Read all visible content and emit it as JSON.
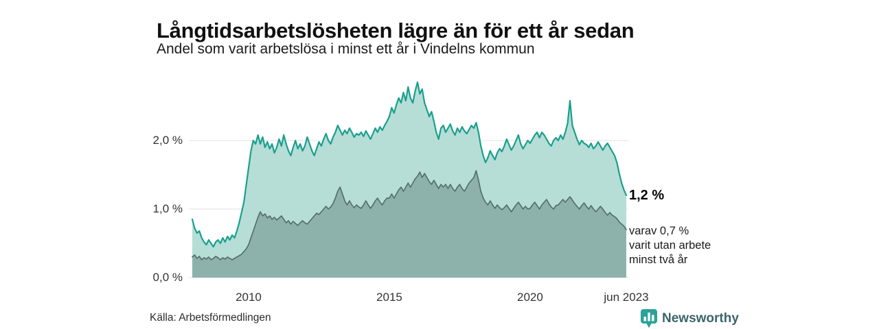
{
  "header": {
    "title": "Långtidsarbetslösheten lägre än för ett år sedan",
    "subtitle": "Andel som varit arbetslösa i minst ett år i Vindelns kommun"
  },
  "annotation": {
    "value_label": "1,2 %",
    "note_lines": [
      "varav 0,7 %",
      "varit utan arbete",
      "minst två år"
    ]
  },
  "footer": {
    "source": "Källa: Arbetsförmedlingen",
    "brand": "Newsworthy"
  },
  "colors": {
    "series1_fill": "#b7ddd7",
    "series1_line": "#18a08c",
    "series2_fill": "#8db2ac",
    "series2_line": "#546f6a",
    "grid": "#e1e1e1",
    "brand_teal": "#2aa39a",
    "brand_text": "#3a656b"
  },
  "chart_data": {
    "type": "area",
    "title": "Långtidsarbetslösheten lägre än för ett år sedan",
    "subtitle": "Andel som varit arbetslösa i minst ett år i Vindelns kommun",
    "unit": "%",
    "frequency": "monthly",
    "x_start": "2008-01",
    "x_end": "2023-06",
    "ylim": [
      0,
      2.97
    ],
    "grid": "horizontal",
    "legend": "none",
    "y_ticks": [
      {
        "label": "2,0 %",
        "value": 2.0
      },
      {
        "label": "1,0 %",
        "value": 1.0
      },
      {
        "label": "0,0 %",
        "value": 0.0
      }
    ],
    "x_ticks": [
      {
        "label": "2010",
        "month_index": 24
      },
      {
        "label": "2015",
        "month_index": 84
      },
      {
        "label": "2020",
        "month_index": 144
      },
      {
        "label": "jun 2023",
        "month_index": 185
      }
    ],
    "end_values": {
      "minst_ett_ar": 1.2,
      "minst_tva_ar": 0.7
    },
    "series": [
      {
        "name": "Arbetslösa minst ett år",
        "values": [
          0.85,
          0.72,
          0.65,
          0.68,
          0.58,
          0.52,
          0.48,
          0.55,
          0.5,
          0.45,
          0.52,
          0.55,
          0.5,
          0.58,
          0.52,
          0.6,
          0.55,
          0.62,
          0.58,
          0.68,
          0.8,
          0.95,
          1.1,
          1.35,
          1.6,
          1.85,
          2.0,
          1.95,
          2.08,
          1.95,
          2.05,
          1.9,
          1.98,
          1.88,
          1.95,
          1.82,
          1.9,
          2.02,
          1.92,
          2.08,
          1.95,
          1.85,
          1.78,
          1.9,
          2.0,
          1.88,
          1.95,
          1.85,
          1.92,
          2.05,
          1.95,
          1.85,
          1.78,
          1.88,
          1.98,
          1.92,
          2.02,
          2.1,
          2.0,
          1.95,
          2.05,
          2.12,
          2.22,
          2.15,
          2.08,
          2.15,
          2.1,
          2.18,
          2.12,
          2.05,
          2.1,
          2.08,
          2.12,
          2.06,
          2.14,
          2.08,
          2.02,
          2.1,
          2.18,
          2.12,
          2.2,
          2.15,
          2.22,
          2.28,
          2.35,
          2.48,
          2.4,
          2.52,
          2.62,
          2.55,
          2.7,
          2.58,
          2.78,
          2.62,
          2.55,
          2.72,
          2.85,
          2.68,
          2.75,
          2.55,
          2.45,
          2.35,
          2.42,
          2.28,
          2.12,
          2.02,
          2.18,
          2.22,
          2.12,
          2.18,
          2.24,
          2.14,
          2.08,
          2.18,
          2.12,
          2.2,
          2.14,
          2.1,
          2.16,
          2.22,
          2.18,
          2.26,
          2.12,
          1.92,
          1.78,
          1.68,
          1.75,
          1.85,
          1.78,
          1.72,
          1.82,
          1.88,
          1.84,
          1.92,
          2.02,
          1.94,
          1.86,
          1.92,
          2.0,
          2.08,
          1.95,
          1.88,
          1.94,
          2.0,
          1.96,
          2.02,
          2.08,
          2.12,
          2.04,
          2.12,
          2.08,
          2.02,
          1.96,
          1.92,
          2.0,
          2.04,
          2.0,
          2.08,
          2.02,
          2.12,
          2.25,
          2.58,
          2.22,
          2.12,
          2.02,
          1.94,
          2.0,
          1.96,
          1.94,
          1.9,
          1.96,
          1.88,
          1.92,
          1.98,
          1.92,
          1.86,
          1.92,
          1.96,
          1.9,
          1.84,
          1.78,
          1.68,
          1.52,
          1.38,
          1.28,
          1.2
        ]
      },
      {
        "name": "Arbetslösa minst två år",
        "values": [
          0.3,
          0.33,
          0.28,
          0.31,
          0.26,
          0.29,
          0.27,
          0.3,
          0.26,
          0.28,
          0.31,
          0.29,
          0.26,
          0.29,
          0.27,
          0.3,
          0.28,
          0.26,
          0.28,
          0.3,
          0.32,
          0.34,
          0.38,
          0.42,
          0.48,
          0.58,
          0.68,
          0.78,
          0.88,
          0.96,
          0.9,
          0.93,
          0.87,
          0.9,
          0.85,
          0.88,
          0.84,
          0.87,
          0.9,
          0.85,
          0.8,
          0.83,
          0.78,
          0.82,
          0.79,
          0.76,
          0.8,
          0.83,
          0.8,
          0.78,
          0.82,
          0.86,
          0.9,
          0.94,
          0.92,
          0.96,
          1.0,
          1.04,
          1.0,
          1.03,
          1.08,
          1.16,
          1.26,
          1.32,
          1.22,
          1.12,
          1.06,
          1.12,
          1.06,
          1.02,
          1.06,
          1.03,
          1.01,
          1.06,
          1.12,
          1.06,
          1.01,
          1.06,
          1.12,
          1.16,
          1.1,
          1.06,
          1.12,
          1.16,
          1.16,
          1.22,
          1.16,
          1.22,
          1.28,
          1.32,
          1.26,
          1.32,
          1.38,
          1.32,
          1.38,
          1.44,
          1.48,
          1.54,
          1.46,
          1.52,
          1.46,
          1.4,
          1.36,
          1.42,
          1.36,
          1.3,
          1.36,
          1.32,
          1.36,
          1.3,
          1.36,
          1.3,
          1.26,
          1.32,
          1.36,
          1.3,
          1.26,
          1.32,
          1.38,
          1.42,
          1.46,
          1.56,
          1.42,
          1.26,
          1.16,
          1.1,
          1.06,
          1.12,
          1.06,
          1.01,
          1.06,
          1.02,
          0.99,
          1.02,
          1.06,
          1.01,
          0.96,
          1.01,
          1.06,
          1.1,
          1.05,
          1.0,
          1.04,
          1.0,
          1.01,
          1.06,
          1.1,
          1.05,
          1.0,
          1.06,
          1.1,
          1.14,
          1.08,
          1.03,
          1.0,
          1.05,
          1.06,
          1.1,
          1.14,
          1.1,
          1.14,
          1.18,
          1.13,
          1.08,
          1.04,
          1.0,
          1.05,
          1.09,
          1.04,
          1.0,
          1.05,
          1.0,
          0.96,
          1.0,
          1.04,
          1.0,
          0.95,
          0.91,
          0.95,
          0.91,
          0.89,
          0.86,
          0.81,
          0.78,
          0.75,
          0.7
        ]
      }
    ]
  }
}
